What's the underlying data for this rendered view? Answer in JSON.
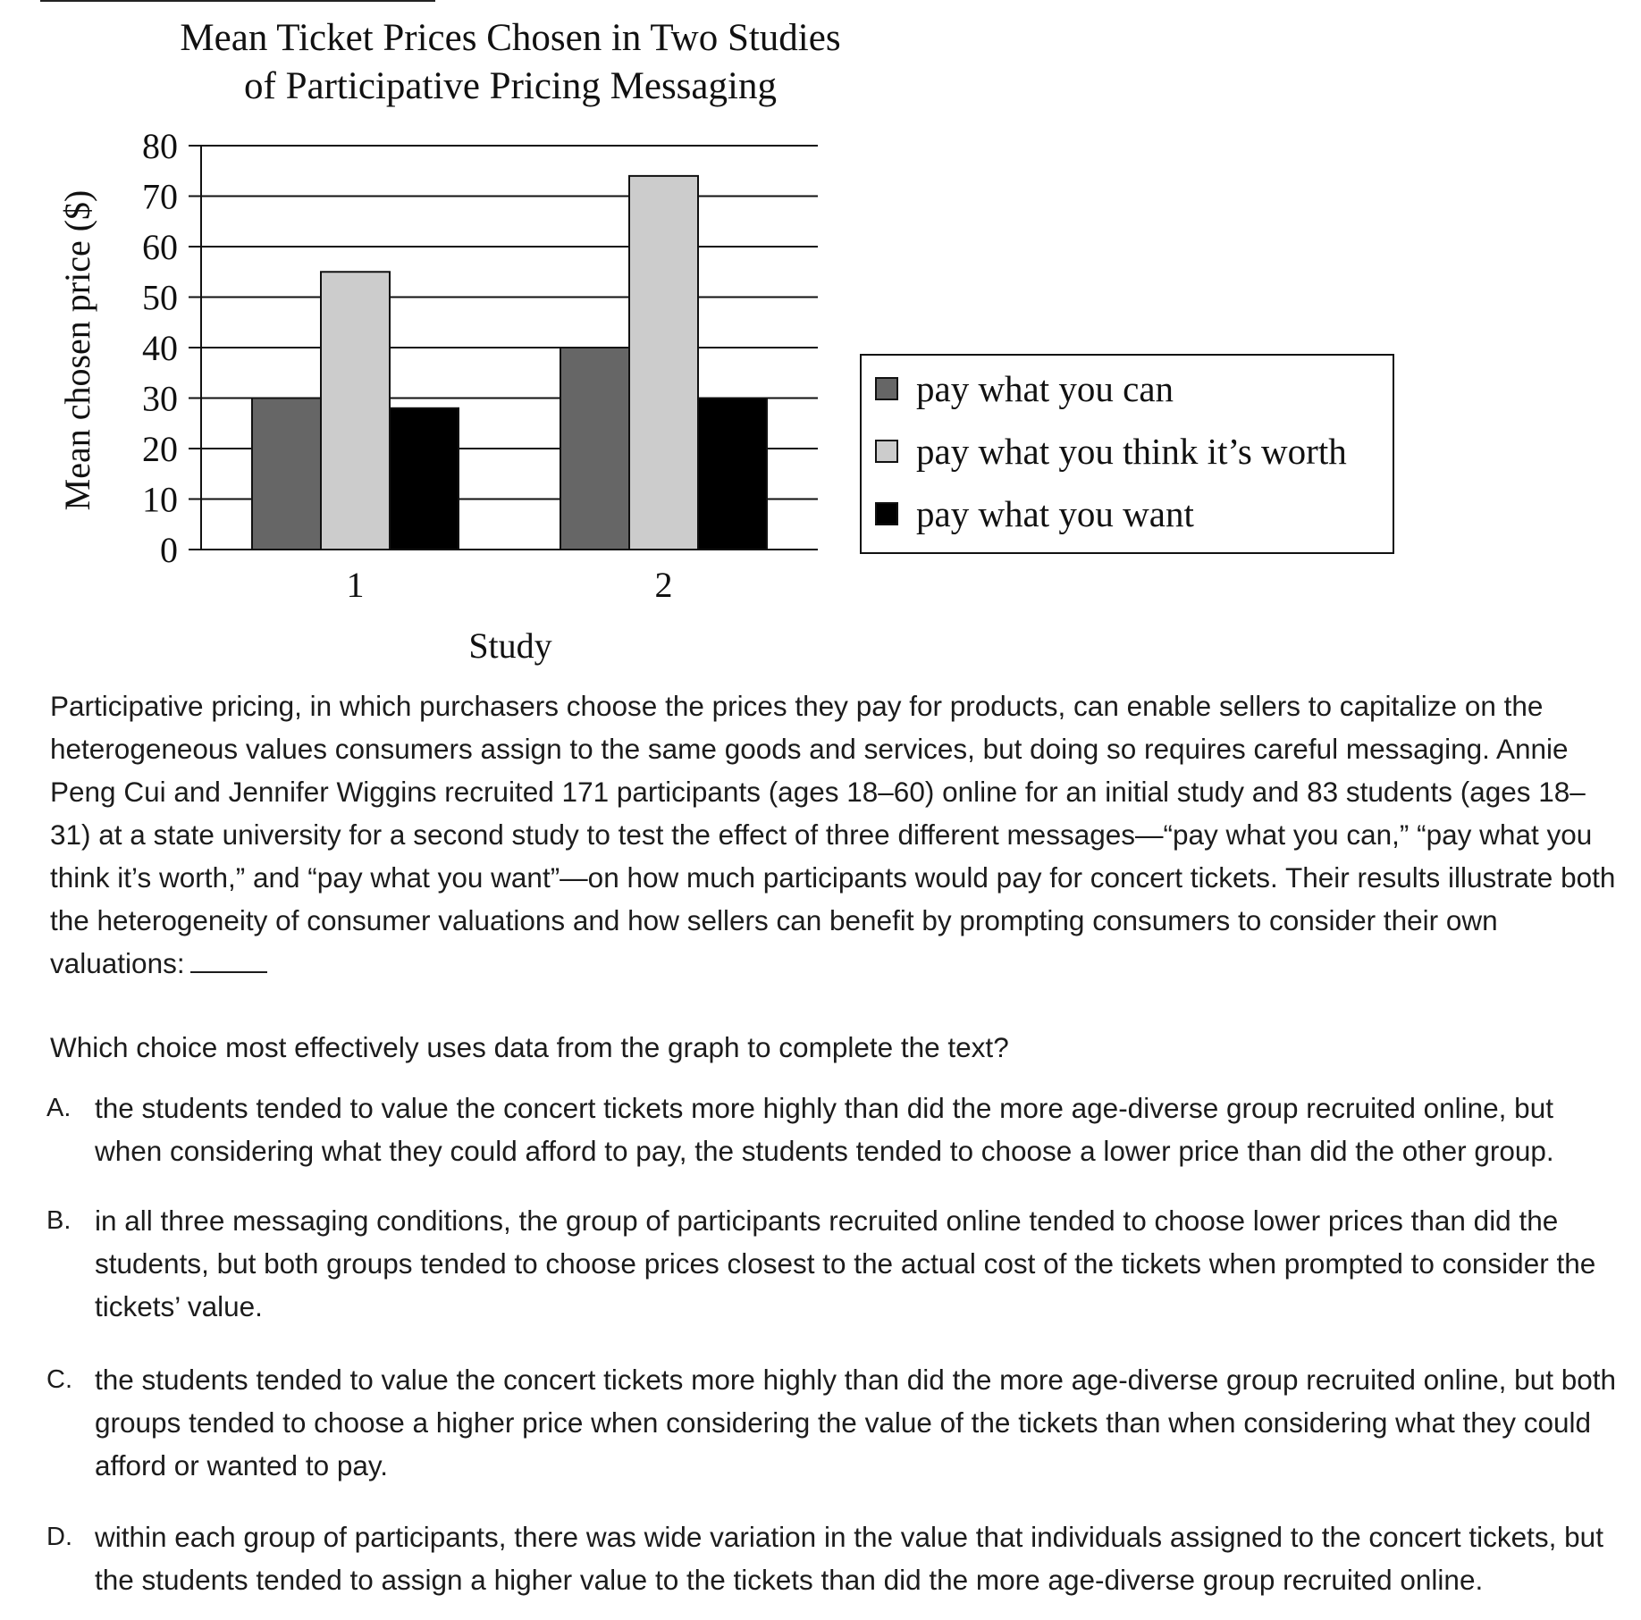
{
  "chart_data": {
    "type": "bar",
    "title": [
      "Mean Ticket Prices Chosen in Two Studies",
      "of Participative Pricing Messaging"
    ],
    "xlabel": "Study",
    "ylabel": "Mean chosen price ($)",
    "categories": [
      "1",
      "2"
    ],
    "ylim": [
      0,
      80
    ],
    "yticks": [
      0,
      10,
      20,
      30,
      40,
      50,
      60,
      70,
      80
    ],
    "grid": true,
    "legend_position": "right",
    "series": [
      {
        "name": "pay what you can",
        "values": [
          30,
          40
        ],
        "color": "#666666"
      },
      {
        "name": "pay what you think it’s worth",
        "values": [
          55,
          74
        ],
        "color": "#cccccc"
      },
      {
        "name": "pay what you want",
        "values": [
          28,
          30
        ],
        "color": "#000000"
      }
    ]
  },
  "passage": {
    "text": "Participative pricing, in which purchasers choose the prices they pay for products, can enable sellers to capitalize on the heterogeneous values consumers assign to the same goods and services, but doing so requires careful messaging. Annie Peng Cui and Jennifer Wiggins recruited 171 participants (ages 18–60) online for an initial study and 83 students (ages 18–31) at a state university for a second study to test the effect of three different messages—“pay what you can,” “pay what you think it’s worth,” and “pay what you want”—on how much participants would pay for concert tickets. Their results illustrate both the heterogeneity of consumer valuations and how sellers can benefit by prompting consumers to consider their own valuations:"
  },
  "question": "Which choice most effectively uses data from the graph to complete the text?",
  "choices": [
    {
      "letter": "A.",
      "text": "the students tended to value the concert tickets more highly than did the more age-diverse group recruited online, but when considering what they could afford to pay, the students tended to choose a lower price than did the other group."
    },
    {
      "letter": "B.",
      "text": "in all three messaging conditions, the group of participants recruited online tended to choose lower prices than did the students, but both groups tended to choose prices closest to the actual cost of the tickets when prompted to consider the tickets’ value."
    },
    {
      "letter": "C.",
      "text": "the students tended to value the concert tickets more highly than did the more age-diverse group recruited online, but both groups tended to choose a higher price when considering the value of the tickets than when considering what they could afford or wanted to pay."
    },
    {
      "letter": "D.",
      "text": "within each group of participants, there was wide variation in the value that individuals assigned to the concert tickets, but the students tended to assign a higher value to the tickets than did the more age-diverse group recruited online."
    }
  ]
}
